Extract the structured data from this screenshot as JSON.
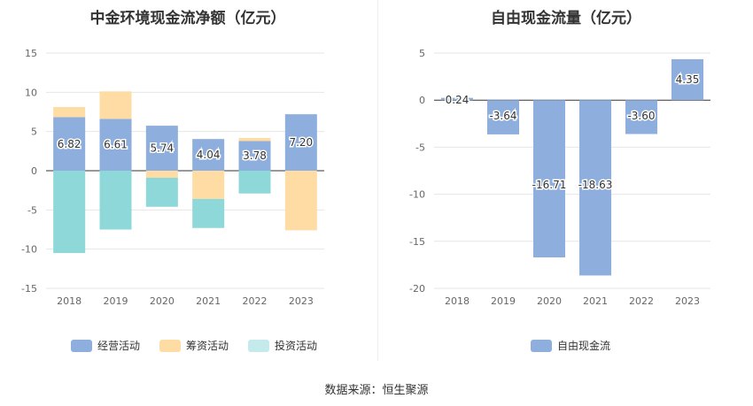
{
  "chart_data": [
    {
      "type": "bar",
      "stacked": true,
      "title": "中金环境现金流净额（亿元）",
      "categories": [
        "2018",
        "2019",
        "2020",
        "2021",
        "2022",
        "2023"
      ],
      "ylim": [
        -15,
        15
      ],
      "yticks": [
        "15",
        "10",
        "5",
        "0",
        "-5",
        "-10",
        "-15"
      ],
      "series": [
        {
          "name": "经营活动",
          "color": "#8eaedd",
          "values": [
            6.82,
            6.61,
            5.74,
            4.04,
            3.78,
            7.2
          ],
          "labels": [
            "6.82",
            "6.61",
            "5.74",
            "4.04",
            "3.78",
            "7.20"
          ]
        },
        {
          "name": "筹资活动",
          "color": "#fedca4",
          "values": [
            1.3,
            3.5,
            -0.9,
            -3.6,
            0.4,
            -7.6
          ]
        },
        {
          "name": "投资活动",
          "color": "#8ed8d9",
          "values": [
            -10.5,
            -7.5,
            -3.7,
            -3.7,
            -2.9,
            0
          ]
        }
      ]
    },
    {
      "type": "bar",
      "title": "自由现金流量（亿元）",
      "categories": [
        "2018",
        "2019",
        "2020",
        "2021",
        "2022",
        "2023"
      ],
      "ylim": [
        -20,
        5
      ],
      "yticks": [
        "5",
        "0",
        "-5",
        "-10",
        "-15",
        "-20"
      ],
      "series": [
        {
          "name": "自由现金流",
          "color": "#8eaedd",
          "values": [
            0.24,
            -3.64,
            -16.71,
            -18.63,
            -3.6,
            4.35
          ],
          "labels": [
            "0.24",
            "-3.64",
            "-16.71",
            "-18.63",
            "-3.60",
            "4.35"
          ]
        }
      ]
    }
  ],
  "legend_left": [
    {
      "label": "经营活动",
      "color": "#8eaedd"
    },
    {
      "label": "筹资活动",
      "color": "#fedca4"
    },
    {
      "label": "投资活动",
      "color": "#c4eaeb"
    }
  ],
  "legend_right": [
    {
      "label": "自由现金流",
      "color": "#8eaedd"
    }
  ],
  "footer": "数据来源：恒生聚源"
}
